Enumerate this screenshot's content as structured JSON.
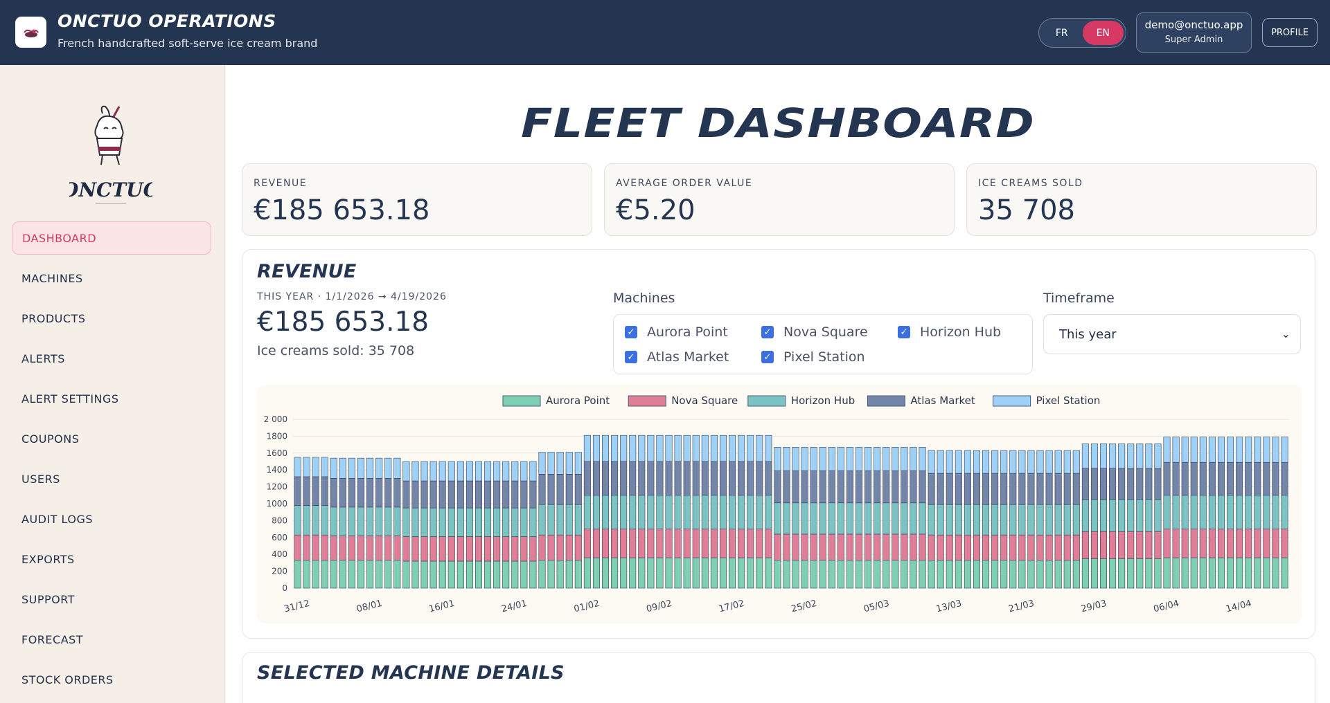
{
  "app": {
    "title": "ONCTUO OPERATIONS",
    "subtitle": "French handcrafted soft-serve ice cream brand"
  },
  "header": {
    "lang_fr": "FR",
    "lang_en": "EN",
    "active_lang": "EN",
    "user_email": "demo@onctuo.app",
    "user_role": "Super Admin",
    "profile_label": "PROFILE"
  },
  "sidebar": {
    "brand_logo_text": "ONCTUO",
    "items": [
      {
        "label": "DASHBOARD",
        "active": true
      },
      {
        "label": "MACHINES"
      },
      {
        "label": "PRODUCTS"
      },
      {
        "label": "ALERTS"
      },
      {
        "label": "ALERT SETTINGS"
      },
      {
        "label": "COUPONS"
      },
      {
        "label": "USERS"
      },
      {
        "label": "AUDIT LOGS"
      },
      {
        "label": "EXPORTS"
      },
      {
        "label": "SUPPORT"
      },
      {
        "label": "FORECAST"
      },
      {
        "label": "STOCK ORDERS"
      }
    ]
  },
  "page": {
    "title": "FLEET DASHBOARD"
  },
  "kpis": [
    {
      "label": "REVENUE",
      "value": "€185 653.18"
    },
    {
      "label": "AVERAGE ORDER VALUE",
      "value": "€5.20"
    },
    {
      "label": "ICE CREAMS SOLD",
      "value": "35 708"
    }
  ],
  "revenue_card": {
    "title": "REVENUE",
    "range": "THIS YEAR · 1/1/2026 → 4/19/2026",
    "total": "€185 653.18",
    "sold": "Ice creams sold: 35 708",
    "machines_label": "Machines",
    "machines": [
      {
        "name": "Aurora Point",
        "checked": true
      },
      {
        "name": "Nova Square",
        "checked": true
      },
      {
        "name": "Horizon Hub",
        "checked": true
      },
      {
        "name": "Atlas Market",
        "checked": true
      },
      {
        "name": "Pixel Station",
        "checked": true
      }
    ],
    "timeframe_label": "Timeframe",
    "timeframe_value": "This year"
  },
  "chart_data": {
    "type": "bar",
    "stacked": true,
    "legend_position": "top",
    "grid": true,
    "ylim": [
      0,
      2000
    ],
    "yticks": [
      "0",
      "200",
      "400",
      "600",
      "800",
      "1000",
      "1200",
      "1400",
      "1600",
      "1800",
      "2 000"
    ],
    "xtick_labels": [
      "31/12",
      "08/01",
      "16/01",
      "24/01",
      "01/02",
      "09/02",
      "17/02",
      "25/02",
      "05/03",
      "13/03",
      "21/03",
      "29/03",
      "06/04",
      "14/04"
    ],
    "xtick_every": 8,
    "num_days": 110,
    "series": [
      {
        "name": "Aurora Point",
        "color": "#7fcfb3"
      },
      {
        "name": "Nova Square",
        "color": "#e07e97"
      },
      {
        "name": "Horizon Hub",
        "color": "#7cc4c4"
      },
      {
        "name": "Atlas Market",
        "color": "#7385a8"
      },
      {
        "name": "Pixel Station",
        "color": "#9fd0f5"
      }
    ],
    "segments": [
      {
        "days": 4,
        "values": [
          330,
          300,
          350,
          340,
          230
        ]
      },
      {
        "days": 8,
        "values": [
          330,
          290,
          340,
          340,
          240
        ]
      },
      {
        "days": 15,
        "values": [
          320,
          290,
          340,
          320,
          230
        ]
      },
      {
        "days": 5,
        "values": [
          330,
          300,
          360,
          360,
          260
        ]
      },
      {
        "days": 21,
        "values": [
          360,
          340,
          400,
          400,
          310
        ]
      },
      {
        "days": 17,
        "values": [
          330,
          310,
          370,
          380,
          280
        ]
      },
      {
        "days": 17,
        "values": [
          330,
          300,
          360,
          370,
          270
        ]
      },
      {
        "days": 9,
        "values": [
          350,
          320,
          380,
          370,
          290
        ]
      },
      {
        "days": 14,
        "values": [
          360,
          340,
          400,
          390,
          300
        ]
      }
    ]
  },
  "details_card": {
    "title": "SELECTED MACHINE DETAILS"
  },
  "colors": {
    "header_bg": "#243552",
    "accent": "#d63a64",
    "checkbox": "#3c6fe0",
    "sidebar_bg": "#f5efe8"
  }
}
